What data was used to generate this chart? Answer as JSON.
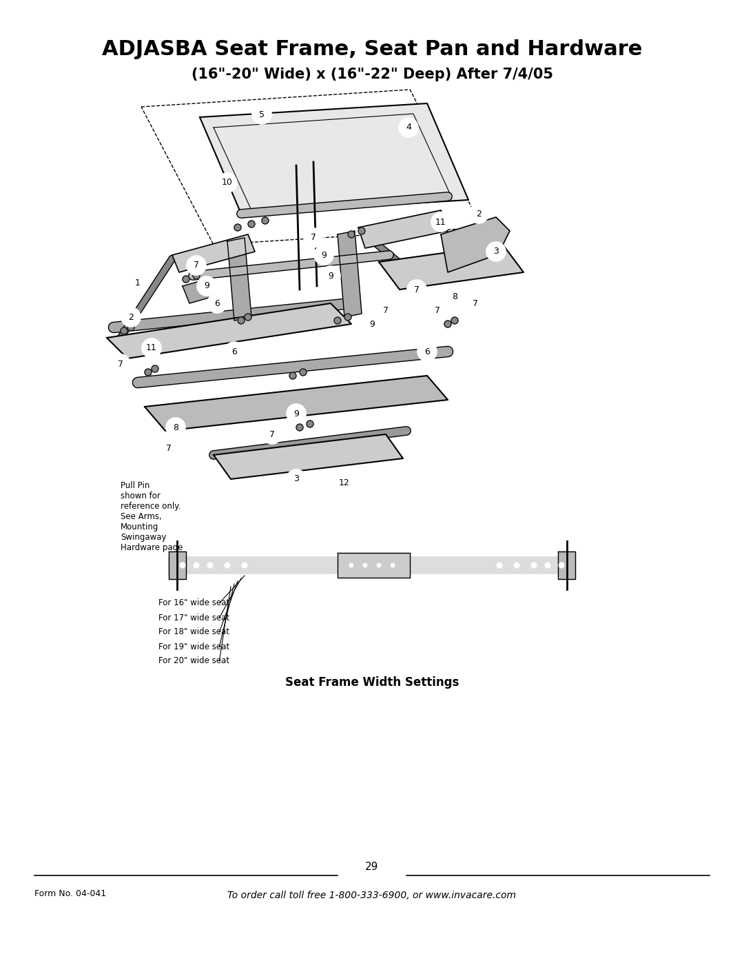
{
  "title": "ADJASBA Seat Frame, Seat Pan and Hardware",
  "subtitle": "(16\"-20\" Wide) x (16\"-22\" Deep) After 7/4/05",
  "page_number": "29",
  "form_number": "Form No. 04-041",
  "footer_text": "To order call toll free 1-800-333-6900, or www.invacare.com",
  "pull_pin_note": "Pull Pin\nshown for\nreference only.\nSee Arms,\nMounting\nSwingaway\nHardware page",
  "seat_width_label": "Seat Frame Width Settings",
  "seat_widths": [
    "For 16\" wide seat",
    "For 17\" wide seat",
    "For 18\" wide seat",
    "For 19\" wide seat",
    "For 20\" wide seat"
  ],
  "bg_color": "#ffffff",
  "text_color": "#000000",
  "line_color": "#000000",
  "diagram_color": "#333333"
}
